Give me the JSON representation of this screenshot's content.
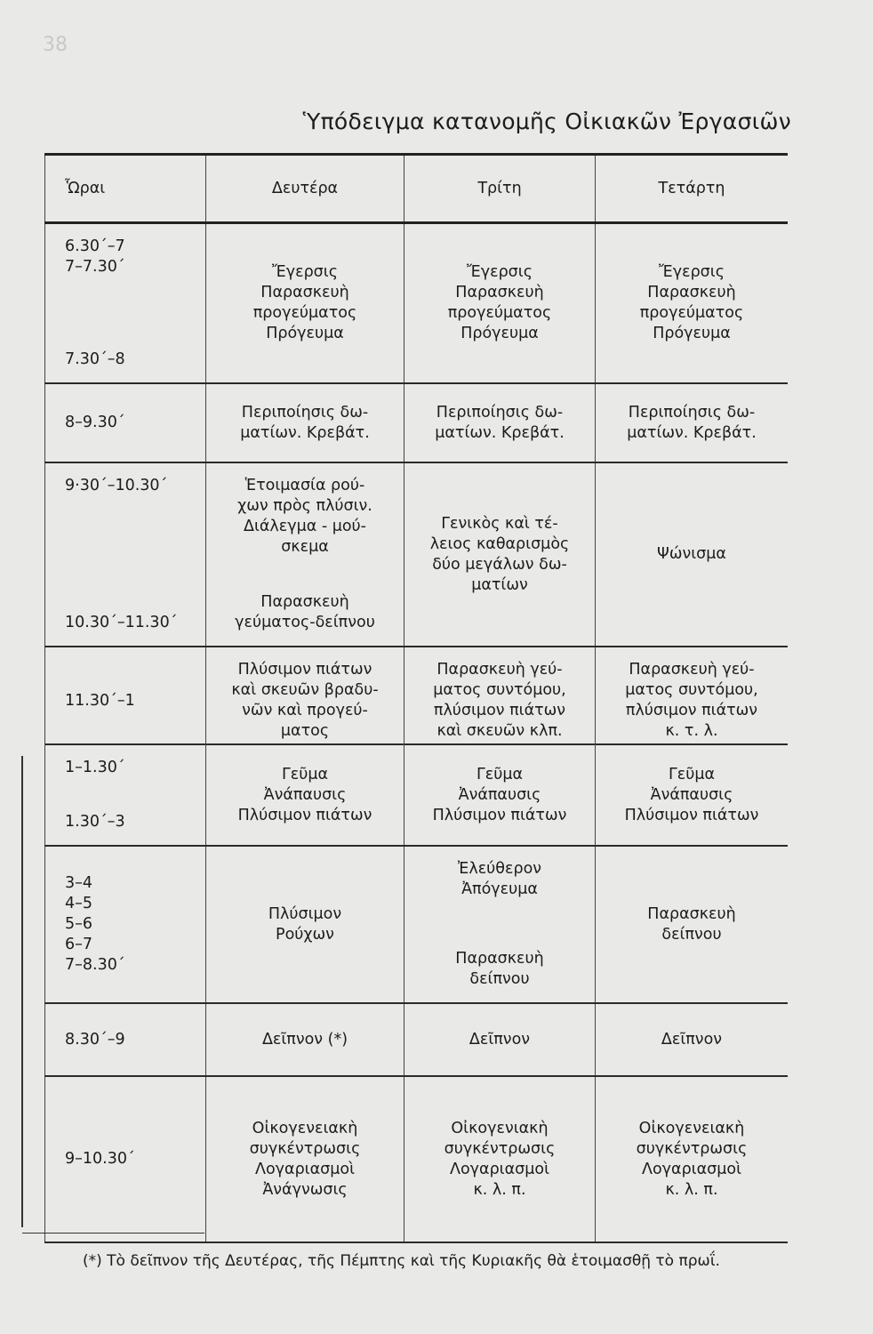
{
  "page_number": "38",
  "title": "Ὑπόδειγμα κατανομῆς Οἰκιακῶν Ἐργασιῶν",
  "table": {
    "headers": [
      "Ὧραι",
      "Δευτέρα",
      "Τρίτη",
      "Τετάρτη"
    ],
    "rows": [
      [
        [
          [
            "6.30΄–7",
            "7–7.30΄"
          ],
          [
            "7.30΄–8"
          ]
        ],
        [
          [
            "Ἔγερσις",
            "Παρασκευὴ",
            "προγεύματος",
            "Πρόγευμα"
          ]
        ],
        [
          [
            "Ἔγερσις",
            "Παρασκευὴ",
            "προγεύματος",
            "Πρόγευμα"
          ]
        ],
        [
          [
            "Ἔγερσις",
            "Παρασκευὴ",
            "προγεύματος",
            "Πρόγευμα"
          ]
        ]
      ],
      [
        [
          [
            "8–9.30΄"
          ]
        ],
        [
          [
            "Περιποίησις δω-",
            "ματίων. Κρεβάτ."
          ]
        ],
        [
          [
            "Περιποίησις δω-",
            "ματίων. Κρεβάτ."
          ]
        ],
        [
          [
            "Περιποίησις δω-",
            "ματίων. Κρεβάτ."
          ]
        ]
      ],
      [
        [
          [
            "9·30΄–10.30΄"
          ],
          [
            "10.30΄–11.30΄"
          ]
        ],
        [
          [
            "Ἑτοιμασία ρού-",
            "χων πρὸς πλύσιν.",
            "Διάλεγμα - μού-",
            "σκεμα"
          ],
          [
            "Παρασκευὴ",
            "γεύματος-δείπνου"
          ]
        ],
        [
          [
            "Γενικὸς καὶ τέ-",
            "λειος καθαρισμὸς",
            "δύο μεγάλων δω-",
            "ματίων"
          ]
        ],
        [
          [
            "Ψώνισμα"
          ]
        ]
      ],
      [
        [
          [
            "11.30΄–1"
          ]
        ],
        [
          [
            "Πλύσιμον πιάτων",
            "καὶ σκευῶν βραδυ-",
            "νῶν καὶ προγεύ-",
            "ματος"
          ]
        ],
        [
          [
            "Παρασκευὴ γεύ-",
            "ματος συντόμου,",
            "πλύσιμον πιάτων",
            "καὶ σκευῶν κλπ."
          ]
        ],
        [
          [
            "Παρασκευὴ γεύ-",
            "ματος συντόμου,",
            "πλύσιμον πιάτων",
            "κ. τ. λ."
          ]
        ]
      ],
      [
        [
          [
            "1–1.30΄"
          ],
          [
            "1.30΄–3"
          ]
        ],
        [
          [
            "Γεῦμα",
            "Ἀνάπαυσις",
            "Πλύσιμον πιάτων"
          ]
        ],
        [
          [
            "Γεῦμα",
            "Ἀνάπαυσις",
            "Πλύσιμον πιάτων"
          ]
        ],
        [
          [
            "Γεῦμα",
            "Ἀνάπαυσις",
            "Πλύσιμον πιάτων"
          ]
        ]
      ],
      [
        [
          [
            "3–4",
            "4–5",
            "5–6",
            "6–7",
            "7–8.30΄"
          ]
        ],
        [
          [
            "Πλύσιμον",
            "Ρούχων"
          ]
        ],
        [
          [
            "Ἐλεύθερον",
            "Ἀπόγευμα"
          ],
          [
            "Παρασκευὴ",
            "δείπνου"
          ]
        ],
        [
          [
            "Παρασκευὴ",
            "δείπνου"
          ]
        ]
      ],
      [
        [
          [
            "8.30΄–9"
          ]
        ],
        [
          [
            "Δεῖπνον (*)"
          ]
        ],
        [
          [
            "Δεῖπνον"
          ]
        ],
        [
          [
            "Δεῖπνον"
          ]
        ]
      ],
      [
        [
          [
            "9–10.30΄"
          ]
        ],
        [
          [
            "Οἰκογενειακὴ",
            "συγκέντρωσις",
            "Λογαριασμοὶ",
            "Ἀνάγνωσις"
          ]
        ],
        [
          [
            "Οἰκογενιακὴ",
            "συγκέντρωσις",
            "Λογαριασμοὶ",
            "κ. λ. π."
          ]
        ],
        [
          [
            "Οἰκογενειακὴ",
            "συγκέντρωσις",
            "Λογαριασμοὶ",
            "κ. λ. π."
          ]
        ]
      ]
    ]
  },
  "footnote": "(*) Τὸ δεῖπνον τῆς Δευτέρας, τῆς Πέμπτης καὶ τῆς Κυριακῆς θὰ ἑτοιμασθῇ τὸ πρωΐ."
}
